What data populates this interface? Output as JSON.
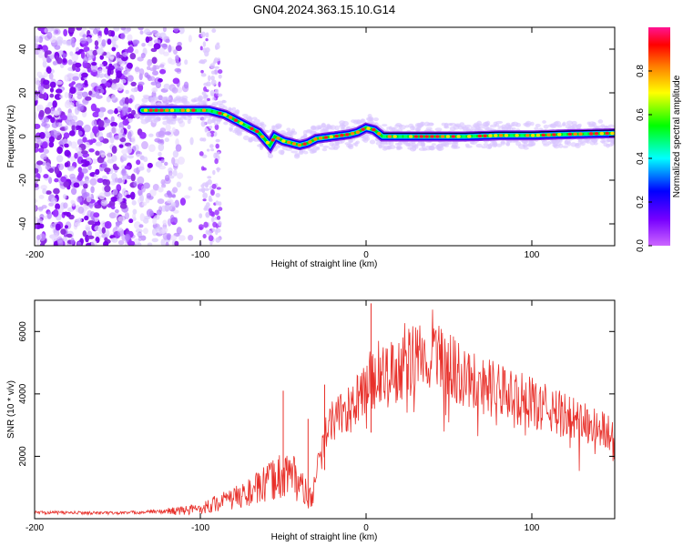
{
  "title": "GN04.2024.363.15.10.G14",
  "chart_data": [
    {
      "type": "heatmap",
      "xlabel": "Height of straight line (km)",
      "ylabel": "Frequency (Hz)",
      "xlim": [
        -200,
        150
      ],
      "ylim": [
        -50,
        50
      ],
      "xticks": [
        -200,
        -100,
        0,
        100
      ],
      "yticks": [
        -40,
        -20,
        0,
        20,
        40
      ],
      "grid": false,
      "colorbar": {
        "label": "Normalized spectral amplitude",
        "range": [
          0,
          1
        ],
        "ticks": [
          "0.0",
          "0.2",
          "0.4",
          "0.6",
          "0.8"
        ],
        "colors": [
          "#cc66ff",
          "#7700ff",
          "#0000ff",
          "#00ffff",
          "#00ff00",
          "#ffff00",
          "#ff7f00",
          "#ff0000",
          "#ff1493"
        ]
      },
      "ridge": {
        "x": [
          -135,
          -125,
          -110,
          -95,
          -85,
          -75,
          -65,
          -58,
          -55,
          -50,
          -45,
          -40,
          -35,
          -30,
          -20,
          -10,
          -5,
          0,
          5,
          10,
          20,
          40,
          60,
          80,
          100,
          120,
          150
        ],
        "y": [
          12,
          12,
          12,
          12,
          10,
          6,
          2,
          -4,
          0,
          -2,
          -3,
          -4,
          -3,
          -1,
          0,
          1,
          2,
          4,
          3,
          0,
          0,
          0,
          0,
          0.5,
          0.5,
          1,
          1.5
        ]
      }
    },
    {
      "type": "line",
      "xlabel": "Height of straight line (km)",
      "ylabel": "SNR (10 * v/v)",
      "xlim": [
        -200,
        150
      ],
      "ylim": [
        0,
        7000
      ],
      "xticks": [
        -200,
        -100,
        0,
        100
      ],
      "yticks": [
        2000,
        4000,
        6000
      ],
      "color": "#e8302a",
      "envelope": {
        "x": [
          -200,
          -150,
          -130,
          -110,
          -100,
          -90,
          -80,
          -70,
          -60,
          -55,
          -50,
          -45,
          -40,
          -35,
          -32,
          -30,
          -28,
          -25,
          -20,
          -15,
          -10,
          -5,
          0,
          3,
          5,
          10,
          20,
          30,
          40,
          50,
          70,
          90,
          110,
          130,
          150
        ],
        "y": [
          200,
          180,
          220,
          260,
          330,
          500,
          650,
          850,
          1100,
          1300,
          1400,
          1500,
          1100,
          700,
          600,
          1500,
          2000,
          2600,
          3200,
          3400,
          3500,
          3800,
          4200,
          4600,
          4300,
          4500,
          4800,
          5100,
          5200,
          4900,
          4300,
          3900,
          3500,
          3100,
          2700
        ]
      },
      "spikes": [
        {
          "x": -50,
          "y": 4100
        },
        {
          "x": -35,
          "y": 3200
        },
        {
          "x": -25,
          "y": 4300
        },
        {
          "x": 3,
          "y": 6900
        }
      ]
    }
  ]
}
